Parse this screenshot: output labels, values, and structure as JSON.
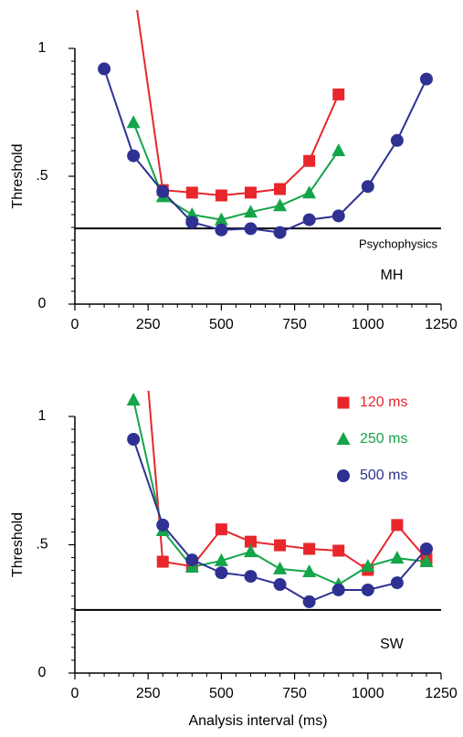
{
  "chart_data": [
    {
      "type": "line",
      "ylabel": "Threshold",
      "xlim": [
        0,
        1250
      ],
      "xticks": [
        0,
        250,
        500,
        750,
        1000,
        1250
      ],
      "ylim": [
        0,
        1.15
      ],
      "yticks": [
        0,
        {
          "value": 0.5,
          "label": ".5"
        },
        1
      ],
      "x": [
        100,
        200,
        300,
        400,
        500,
        600,
        700,
        800,
        900,
        1000,
        1100,
        1200
      ],
      "series": [
        {
          "color": "#e8262b",
          "marker": "square",
          "values": [
            null,
            1.25,
            0.446,
            0.436,
            0.425,
            0.436,
            0.45,
            0.56,
            0.82,
            null,
            null,
            null
          ]
        },
        {
          "color": "#14a54a",
          "marker": "triangle",
          "values": [
            null,
            0.71,
            0.42,
            0.35,
            0.33,
            0.36,
            0.385,
            0.435,
            0.6,
            null,
            null,
            null
          ]
        },
        {
          "color": "#2e3192",
          "marker": "circle",
          "values": [
            0.92,
            0.58,
            0.44,
            0.32,
            0.29,
            0.295,
            0.28,
            0.33,
            0.345,
            0.46,
            0.64,
            0.88
          ]
        }
      ],
      "reference_line": {
        "value": 0.296,
        "label": "Psychophysics"
      },
      "panel_label": "MH"
    },
    {
      "type": "line",
      "ylabel": "Threshold",
      "xlabel": "Analysis interval (ms)",
      "xlim": [
        0,
        1250
      ],
      "xticks": [
        0,
        250,
        500,
        750,
        1000,
        1250
      ],
      "ylim": [
        0,
        1.1
      ],
      "yticks": [
        0,
        {
          "value": 0.5,
          "label": ".5"
        },
        1
      ],
      "x": [
        100,
        200,
        300,
        400,
        500,
        600,
        700,
        800,
        900,
        1000,
        1100,
        1200
      ],
      "series": [
        {
          "name": "120 ms",
          "color": "#e8262b",
          "marker": "square",
          "values": [
            null,
            1.8,
            0.434,
            0.416,
            0.56,
            0.512,
            0.498,
            0.484,
            0.477,
            0.402,
            0.577,
            0.445
          ]
        },
        {
          "name": "250 ms",
          "color": "#14a54a",
          "marker": "triangle",
          "values": [
            null,
            1.064,
            0.555,
            0.413,
            0.438,
            0.473,
            0.406,
            0.395,
            0.345,
            0.416,
            0.448,
            0.434
          ]
        },
        {
          "name": "500 ms",
          "color": "#2e3192",
          "marker": "circle",
          "values": [
            null,
            0.911,
            0.577,
            0.441,
            0.391,
            0.377,
            0.345,
            0.278,
            0.324,
            0.324,
            0.352,
            0.484
          ]
        }
      ],
      "reference_line": {
        "value": 0.246
      },
      "panel_label": "SW"
    }
  ]
}
